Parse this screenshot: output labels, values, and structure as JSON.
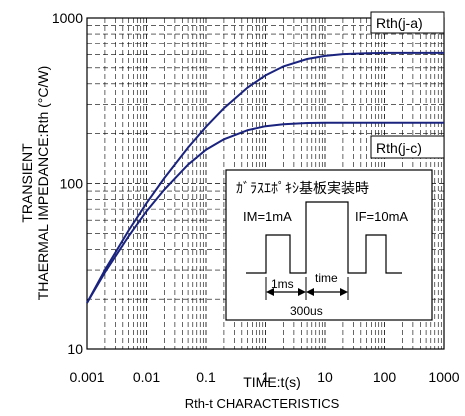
{
  "chart_data": {
    "type": "line",
    "title": "",
    "xlabel": "TIME:t(s)",
    "ylabel_line1": "TRANSIENT",
    "ylabel_line2": "THAERMAL IMPEDANCE:Rth (°C/W)",
    "caption": "Rth-t CHARACTERISTICS",
    "x_scale": "log",
    "y_scale": "log",
    "xlim": [
      0.001,
      1000
    ],
    "ylim": [
      10,
      1000
    ],
    "x_ticks": [
      "0.001",
      "0.01",
      "0.1",
      "1",
      "10",
      "100",
      "1000"
    ],
    "y_ticks": [
      "10",
      "100",
      "1000"
    ],
    "grid": "dashed log grid",
    "line_color": "#1a237e",
    "series": [
      {
        "name": "Rth(j-a)",
        "x": [
          0.001,
          0.002,
          0.005,
          0.01,
          0.02,
          0.05,
          0.1,
          0.2,
          0.5,
          1,
          2,
          5,
          10,
          20,
          50,
          100,
          200,
          500,
          1000
        ],
        "y": [
          19,
          30,
          52,
          76,
          108,
          165,
          220,
          285,
          380,
          450,
          510,
          565,
          590,
          605,
          612,
          615,
          615,
          615,
          615
        ]
      },
      {
        "name": "Rth(j-c)",
        "x": [
          0.001,
          0.002,
          0.005,
          0.01,
          0.02,
          0.05,
          0.1,
          0.2,
          0.5,
          1,
          2,
          5,
          10,
          20,
          50,
          100,
          200,
          500,
          1000
        ],
        "y": [
          19,
          29,
          48,
          68,
          92,
          130,
          160,
          185,
          210,
          222,
          228,
          232,
          233,
          233,
          233,
          233,
          233,
          233,
          233
        ]
      }
    ]
  },
  "inset": {
    "title": "ｶﾞﾗｽｴﾎﾟｷｼ基板実装時",
    "im_label": "IM=1mA",
    "if_label": "IF=10mA",
    "label_1ms": "1ms",
    "label_time": "time",
    "label_300us": "300us"
  }
}
